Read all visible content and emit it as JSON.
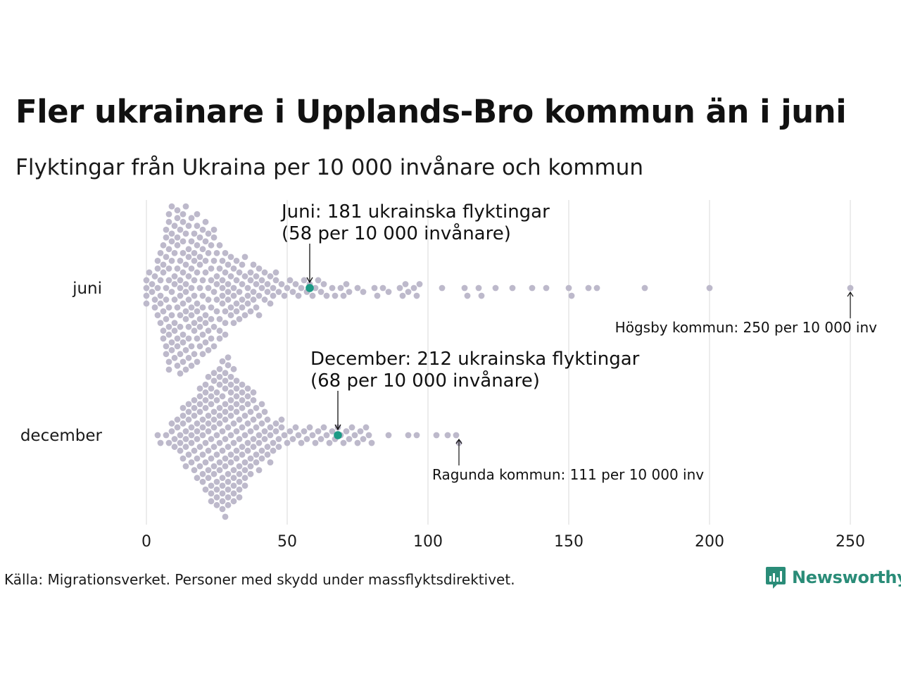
{
  "header": {
    "title": "Fler ukrainare i Upplands-Bro kommun än i juni",
    "subtitle": "Flyktingar från Ukraina per 10 000 invånare och kommun"
  },
  "footer": {
    "source": "Källa: Migrationsverket. Personer med skydd under massflyktsdirektivet.",
    "brand": "Newsworthy"
  },
  "colors": {
    "dot": "#bdb9cb",
    "highlight": "#1c9a85",
    "grid": "#d9d9d9",
    "text": "#111111",
    "brand": "#2a8c78"
  },
  "chart_data": {
    "type": "scatter",
    "subtype": "beeswarm",
    "xlim": [
      0,
      250
    ],
    "xticks": [
      0,
      50,
      100,
      150,
      200,
      250
    ],
    "xlabel": "",
    "ylabel": "",
    "grid": true,
    "categories": [
      "juni",
      "december"
    ],
    "series": [
      {
        "name": "juni",
        "highlight": {
          "value": 58,
          "lines": [
            "Juni: 181 ukrainska flyktingar",
            "(58 per 10 000 invånare)"
          ]
        },
        "max_note": {
          "value": 250,
          "text": "Högsby kommun: 250 per 10 000 inv"
        },
        "values": [
          0,
          0,
          0,
          0,
          1,
          2,
          2,
          3,
          3,
          3,
          4,
          4,
          4,
          4,
          5,
          5,
          5,
          5,
          5,
          6,
          6,
          6,
          6,
          6,
          6,
          7,
          7,
          7,
          7,
          7,
          7,
          7,
          7,
          8,
          8,
          8,
          8,
          8,
          8,
          8,
          8,
          8,
          8,
          9,
          9,
          9,
          9,
          9,
          9,
          9,
          9,
          10,
          10,
          10,
          10,
          10,
          10,
          10,
          10,
          11,
          11,
          11,
          11,
          11,
          11,
          11,
          11,
          11,
          12,
          12,
          12,
          12,
          12,
          12,
          12,
          12,
          12,
          13,
          13,
          13,
          13,
          13,
          13,
          13,
          13,
          13,
          14,
          14,
          14,
          14,
          14,
          14,
          14,
          14,
          14,
          15,
          15,
          15,
          15,
          15,
          15,
          15,
          15,
          16,
          16,
          16,
          16,
          16,
          16,
          16,
          16,
          17,
          17,
          17,
          17,
          17,
          17,
          17,
          17,
          18,
          18,
          18,
          18,
          18,
          18,
          18,
          18,
          19,
          19,
          19,
          19,
          19,
          19,
          19,
          20,
          20,
          20,
          20,
          20,
          20,
          20,
          21,
          21,
          21,
          21,
          21,
          21,
          21,
          22,
          22,
          22,
          22,
          22,
          22,
          23,
          23,
          23,
          23,
          23,
          23,
          24,
          24,
          24,
          24,
          24,
          24,
          25,
          25,
          25,
          25,
          25,
          26,
          26,
          26,
          26,
          26,
          27,
          27,
          27,
          27,
          27,
          28,
          28,
          28,
          28,
          28,
          29,
          29,
          29,
          29,
          30,
          30,
          30,
          30,
          31,
          31,
          31,
          31,
          32,
          32,
          32,
          32,
          33,
          33,
          33,
          34,
          34,
          34,
          34,
          35,
          35,
          35,
          36,
          36,
          36,
          37,
          37,
          37,
          38,
          38,
          38,
          39,
          39,
          39,
          40,
          40,
          40,
          41,
          41,
          42,
          42,
          43,
          43,
          44,
          44,
          45,
          45,
          46,
          46,
          47,
          48,
          49,
          50,
          51,
          52,
          53,
          54,
          55,
          56,
          57,
          58,
          59,
          60,
          61,
          62,
          63,
          64,
          66,
          67,
          69,
          70,
          71,
          72,
          75,
          77,
          81,
          82,
          84,
          86,
          90,
          91,
          92,
          93,
          95,
          96,
          97,
          105,
          113,
          114,
          118,
          119,
          124,
          130,
          137,
          142,
          150,
          151,
          157,
          160,
          177,
          200,
          250
        ]
      },
      {
        "name": "december",
        "highlight": {
          "value": 68,
          "lines": [
            "December: 212 ukrainska flyktingar",
            "(68 per 10 000 invånare)"
          ]
        },
        "max_note": {
          "value": 111,
          "text": "Ragunda kommun: 111 per 10 000 inv"
        },
        "values": [
          4,
          5,
          7,
          8,
          9,
          9,
          10,
          10,
          11,
          11,
          12,
          12,
          12,
          13,
          13,
          13,
          13,
          14,
          14,
          14,
          14,
          15,
          15,
          15,
          15,
          16,
          16,
          16,
          16,
          17,
          17,
          17,
          17,
          17,
          18,
          18,
          18,
          18,
          18,
          19,
          19,
          19,
          19,
          19,
          19,
          20,
          20,
          20,
          20,
          20,
          20,
          21,
          21,
          21,
          21,
          21,
          21,
          21,
          22,
          22,
          22,
          22,
          22,
          22,
          22,
          23,
          23,
          23,
          23,
          23,
          23,
          23,
          23,
          24,
          24,
          24,
          24,
          24,
          24,
          24,
          24,
          25,
          25,
          25,
          25,
          25,
          25,
          25,
          25,
          26,
          26,
          26,
          26,
          26,
          26,
          26,
          26,
          26,
          27,
          27,
          27,
          27,
          27,
          27,
          27,
          27,
          27,
          28,
          28,
          28,
          28,
          28,
          28,
          28,
          28,
          28,
          28,
          29,
          29,
          29,
          29,
          29,
          29,
          29,
          29,
          29,
          30,
          30,
          30,
          30,
          30,
          30,
          30,
          30,
          30,
          31,
          31,
          31,
          31,
          31,
          31,
          31,
          31,
          32,
          32,
          32,
          32,
          32,
          32,
          32,
          32,
          33,
          33,
          33,
          33,
          33,
          33,
          33,
          34,
          34,
          34,
          34,
          34,
          34,
          34,
          35,
          35,
          35,
          35,
          35,
          35,
          36,
          36,
          36,
          36,
          36,
          36,
          37,
          37,
          37,
          37,
          37,
          38,
          38,
          38,
          38,
          38,
          39,
          39,
          39,
          39,
          40,
          40,
          40,
          40,
          41,
          41,
          41,
          41,
          42,
          42,
          42,
          43,
          43,
          43,
          44,
          44,
          44,
          45,
          45,
          46,
          46,
          47,
          47,
          48,
          48,
          49,
          50,
          51,
          52,
          53,
          54,
          55,
          56,
          57,
          58,
          59,
          60,
          61,
          62,
          63,
          64,
          65,
          66,
          67,
          68,
          69,
          70,
          71,
          72,
          73,
          74,
          75,
          76,
          77,
          78,
          79,
          80,
          86,
          93,
          96,
          103,
          107,
          110,
          111
        ]
      }
    ],
    "annotations": [
      "Juni: 181 ukrainska flyktingar",
      "(58 per 10 000 invånare)",
      "December: 212 ukrainska flyktingar",
      "(68 per 10 000 invånare)",
      "Högsby kommun: 250 per 10 000 inv",
      "Ragunda kommun: 111 per 10 000 inv"
    ]
  }
}
